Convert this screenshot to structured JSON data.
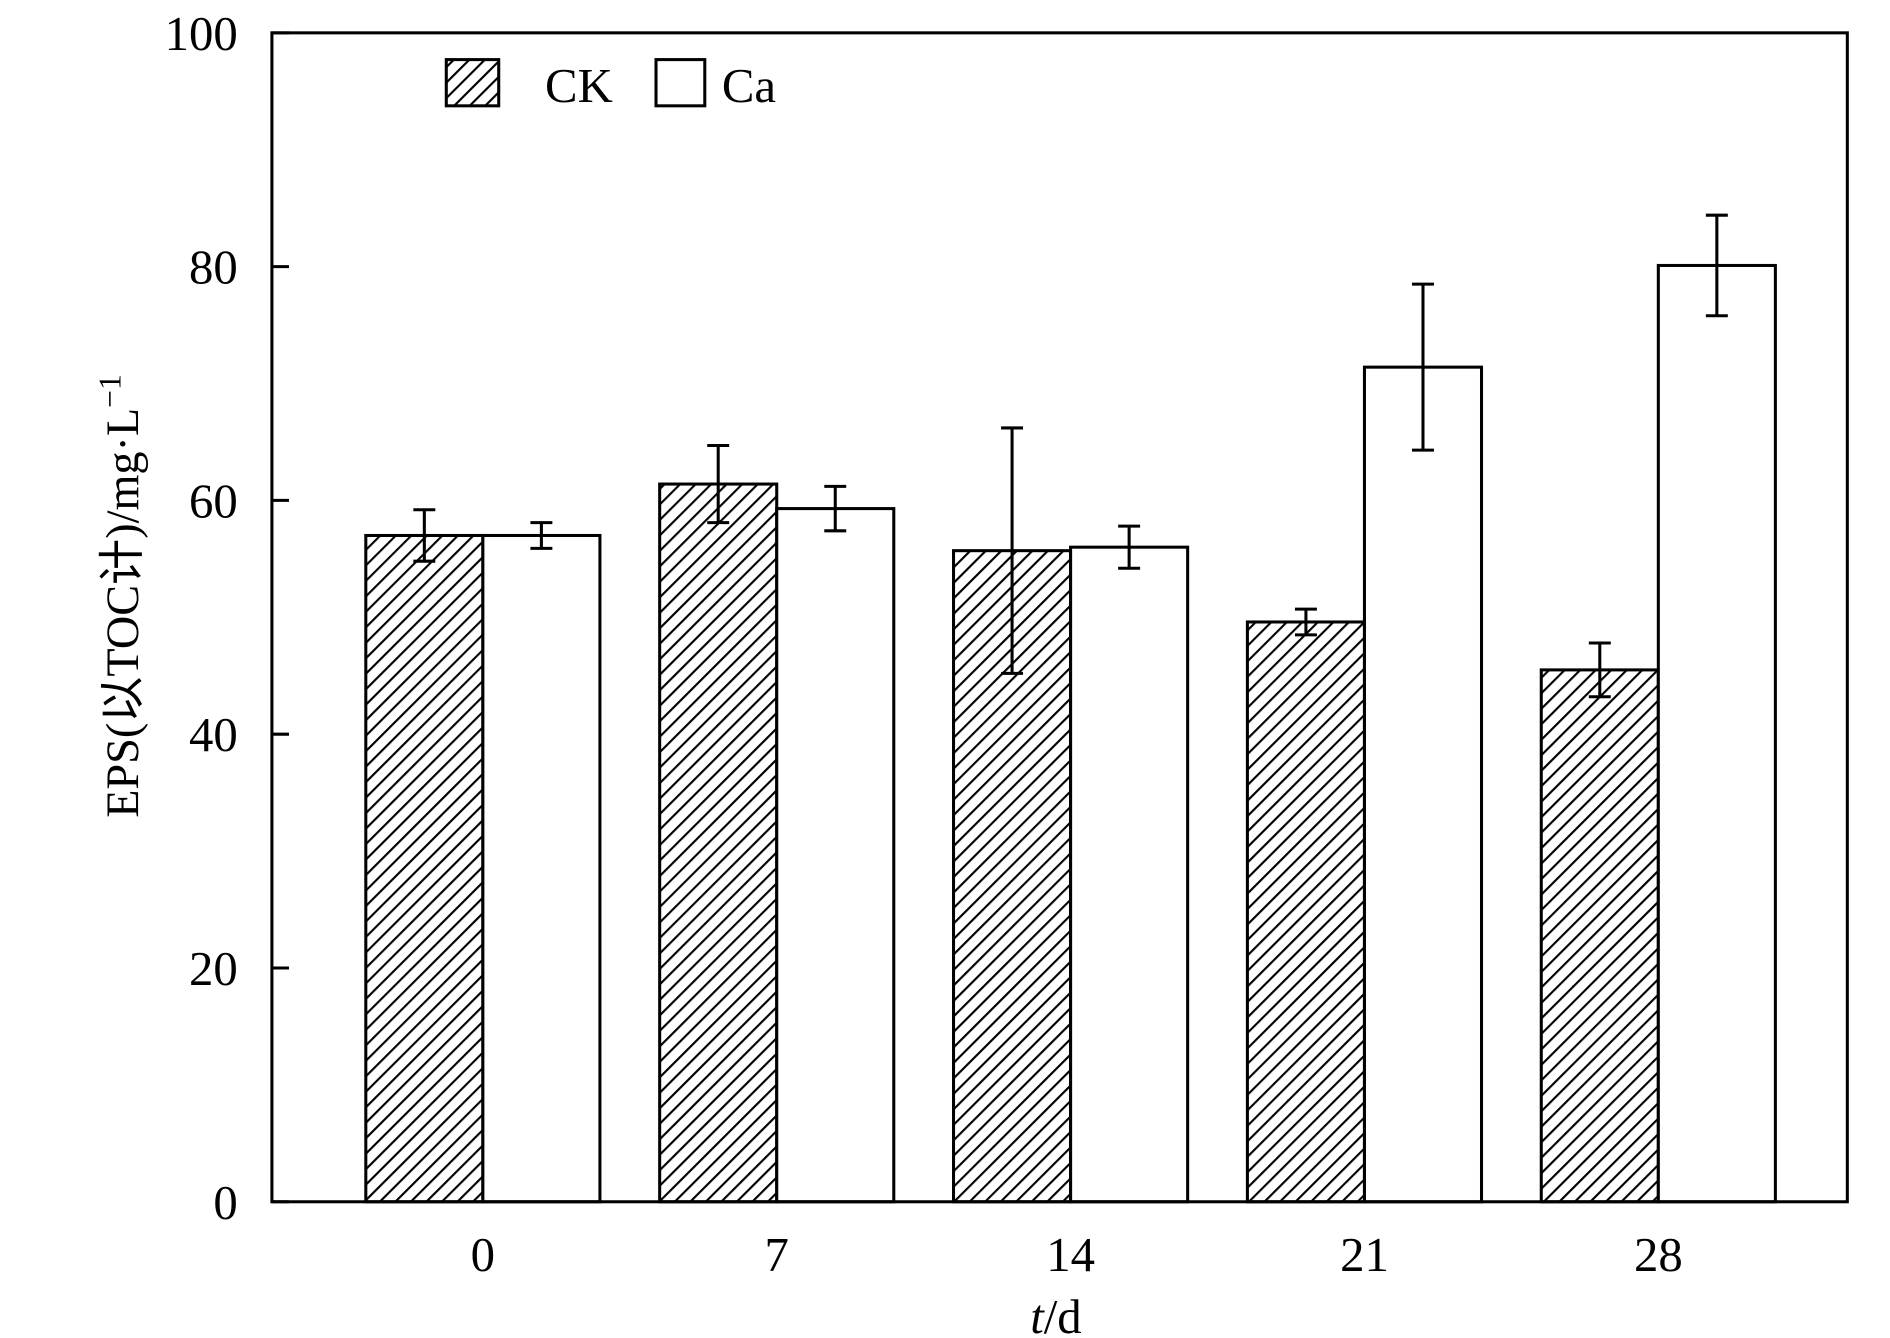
{
  "chart_data": {
    "type": "bar",
    "title": "",
    "xlabel_italic": "t",
    "xlabel_rest": "/d",
    "ylabel": "EPS(以TOC计)/mg·L",
    "ylabel_sup": "−1",
    "categories": [
      "0",
      "7",
      "14",
      "21",
      "28"
    ],
    "ylim": [
      0,
      100
    ],
    "yticks": [
      "0",
      "20",
      "40",
      "60",
      "80",
      "100"
    ],
    "legend_position": "top-left",
    "series": [
      {
        "name": "CK",
        "pattern": "hatched",
        "values": [
          57.0,
          61.4,
          55.7,
          49.6,
          45.5
        ],
        "errors": [
          2.2,
          3.3,
          10.5,
          1.1,
          2.3
        ]
      },
      {
        "name": "Ca",
        "pattern": "open",
        "values": [
          57.0,
          59.3,
          56.0,
          71.4,
          80.1
        ],
        "errors": [
          1.1,
          1.9,
          1.8,
          7.1,
          4.3
        ]
      }
    ]
  }
}
